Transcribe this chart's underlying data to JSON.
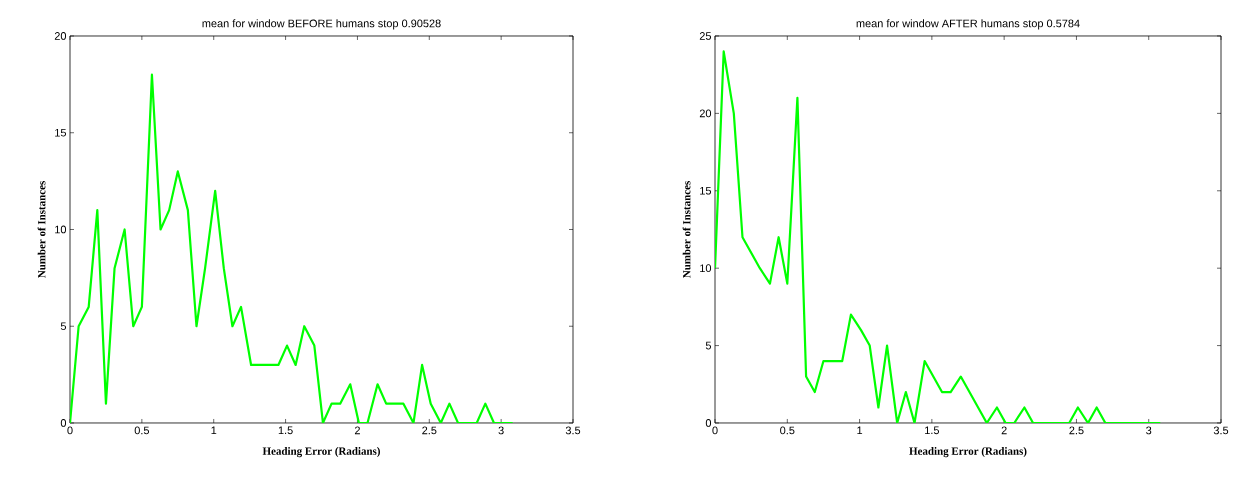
{
  "chart_data": [
    {
      "type": "line",
      "title": "mean for window BEFORE humans stop 0.90528",
      "xlabel": "Heading Error (Radians)",
      "ylabel": "Number of Instances",
      "x": [
        0,
        0.06,
        0.13,
        0.19,
        0.25,
        0.31,
        0.38,
        0.44,
        0.5,
        0.57,
        0.63,
        0.69,
        0.75,
        0.82,
        0.88,
        0.94,
        1.01,
        1.07,
        1.13,
        1.19,
        1.26,
        1.32,
        1.38,
        1.45,
        1.51,
        1.57,
        1.63,
        1.7,
        1.76,
        1.82,
        1.88,
        1.95,
        2.01,
        2.07,
        2.14,
        2.2,
        2.26,
        2.32,
        2.39,
        2.45,
        2.51,
        2.58,
        2.64,
        2.7,
        2.76,
        2.83,
        2.89,
        2.95,
        3.02,
        3.08
      ],
      "series": [
        {
          "color": "#00ff00",
          "values": [
            0,
            5,
            6,
            11,
            1,
            8,
            10,
            5,
            6,
            18,
            10,
            11,
            13,
            11,
            5,
            8,
            12,
            8,
            5,
            6,
            3,
            3,
            3,
            3,
            4,
            3,
            5,
            4,
            0,
            1,
            1,
            2,
            0,
            0,
            2,
            1,
            1,
            1,
            0,
            3,
            1,
            0,
            1,
            0,
            0,
            0,
            1,
            0,
            0,
            0
          ]
        }
      ],
      "xlim": [
        0,
        3.5
      ],
      "ylim": [
        0,
        20
      ],
      "xticks": [
        0,
        0.5,
        1,
        1.5,
        2,
        2.5,
        3,
        3.5
      ],
      "yticks": [
        0,
        5,
        10,
        15,
        20
      ],
      "marker": "none",
      "line_style": "solid"
    },
    {
      "type": "line",
      "title": "mean for window AFTER humans stop 0.5784",
      "xlabel": "Heading Error (Radians)",
      "ylabel": "Number of Instances",
      "x": [
        0,
        0.06,
        0.13,
        0.19,
        0.25,
        0.31,
        0.38,
        0.44,
        0.5,
        0.57,
        0.63,
        0.69,
        0.75,
        0.82,
        0.88,
        0.94,
        1.01,
        1.07,
        1.13,
        1.19,
        1.26,
        1.32,
        1.38,
        1.45,
        1.51,
        1.57,
        1.63,
        1.7,
        1.76,
        1.82,
        1.88,
        1.95,
        2.01,
        2.07,
        2.14,
        2.2,
        2.26,
        2.32,
        2.39,
        2.45,
        2.51,
        2.58,
        2.64,
        2.7,
        2.76,
        2.83,
        2.89,
        2.95,
        3.02,
        3.08
      ],
      "series": [
        {
          "color": "#00ff00",
          "values": [
            10,
            24,
            20,
            12,
            11,
            10,
            9,
            12,
            9,
            21,
            3,
            2,
            4,
            4,
            4,
            7,
            6,
            5,
            1,
            5,
            0,
            2,
            0,
            4,
            3,
            2,
            2,
            3,
            2,
            1,
            0,
            1,
            0,
            0,
            1,
            0,
            0,
            0,
            0,
            0,
            1,
            0,
            1,
            0,
            0,
            0,
            0,
            0,
            0,
            0
          ]
        }
      ],
      "xlim": [
        0,
        3.5
      ],
      "ylim": [
        0,
        25
      ],
      "xticks": [
        0,
        0.5,
        1,
        1.5,
        2,
        2.5,
        3,
        3.5
      ],
      "yticks": [
        0,
        5,
        10,
        15,
        20,
        25
      ],
      "marker": "none",
      "line_style": "solid"
    }
  ]
}
